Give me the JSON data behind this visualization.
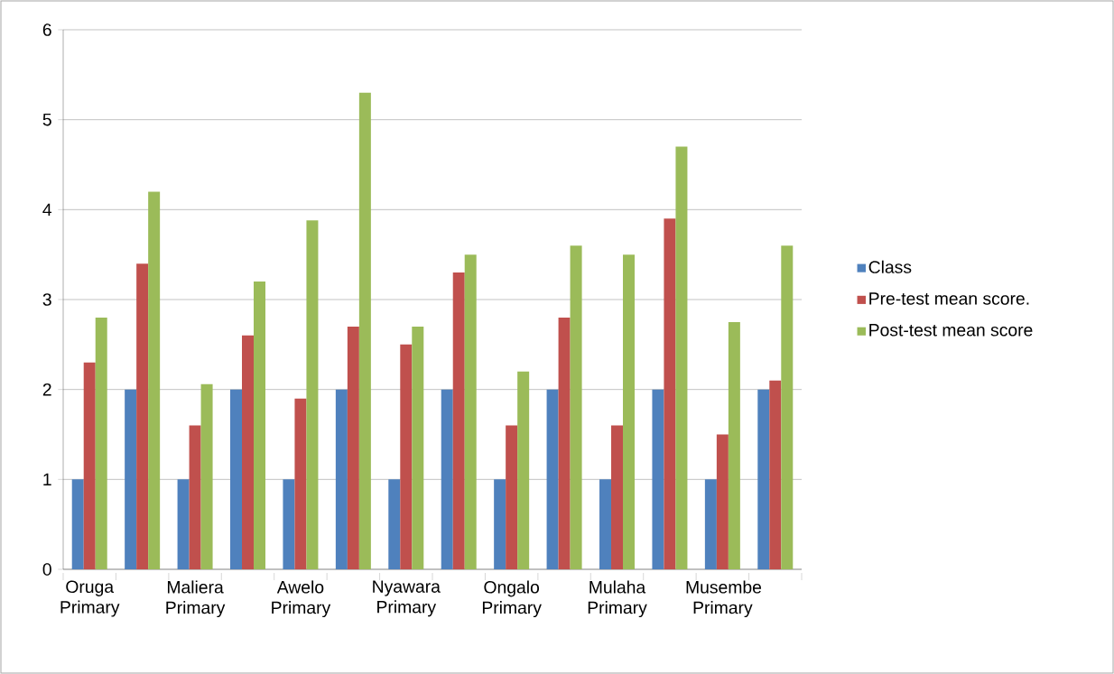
{
  "chart_data": {
    "type": "bar",
    "categories": [
      "Oruga Primary",
      null,
      "Maliera Primary",
      null,
      "Awelo Primary",
      null,
      "Nyawara Primary",
      null,
      "Ongalo Primary",
      null,
      "Mulaha Primary",
      null,
      "Musembe Primary",
      null
    ],
    "series": [
      {
        "name": "Class",
        "color": "#4f81bd",
        "values": [
          1,
          2,
          1,
          2,
          1,
          2,
          1,
          2,
          1,
          2,
          1,
          2,
          1,
          2
        ]
      },
      {
        "name": "Pre-test mean score.",
        "color": "#c0504d",
        "values": [
          2.3,
          3.4,
          1.6,
          2.6,
          1.9,
          2.7,
          2.5,
          3.3,
          1.6,
          2.8,
          1.6,
          3.9,
          1.5,
          2.1
        ]
      },
      {
        "name": "Post-test mean score",
        "color": "#9bbb59",
        "values": [
          2.8,
          4.2,
          2.06,
          3.2,
          3.88,
          5.3,
          2.7,
          3.5,
          2.2,
          3.6,
          3.5,
          4.7,
          2.75,
          3.6
        ]
      }
    ],
    "ylim": [
      0,
      6
    ],
    "yticks": [
      0,
      1,
      2,
      3,
      4,
      5,
      6
    ],
    "grid": "y",
    "legend": "right"
  }
}
